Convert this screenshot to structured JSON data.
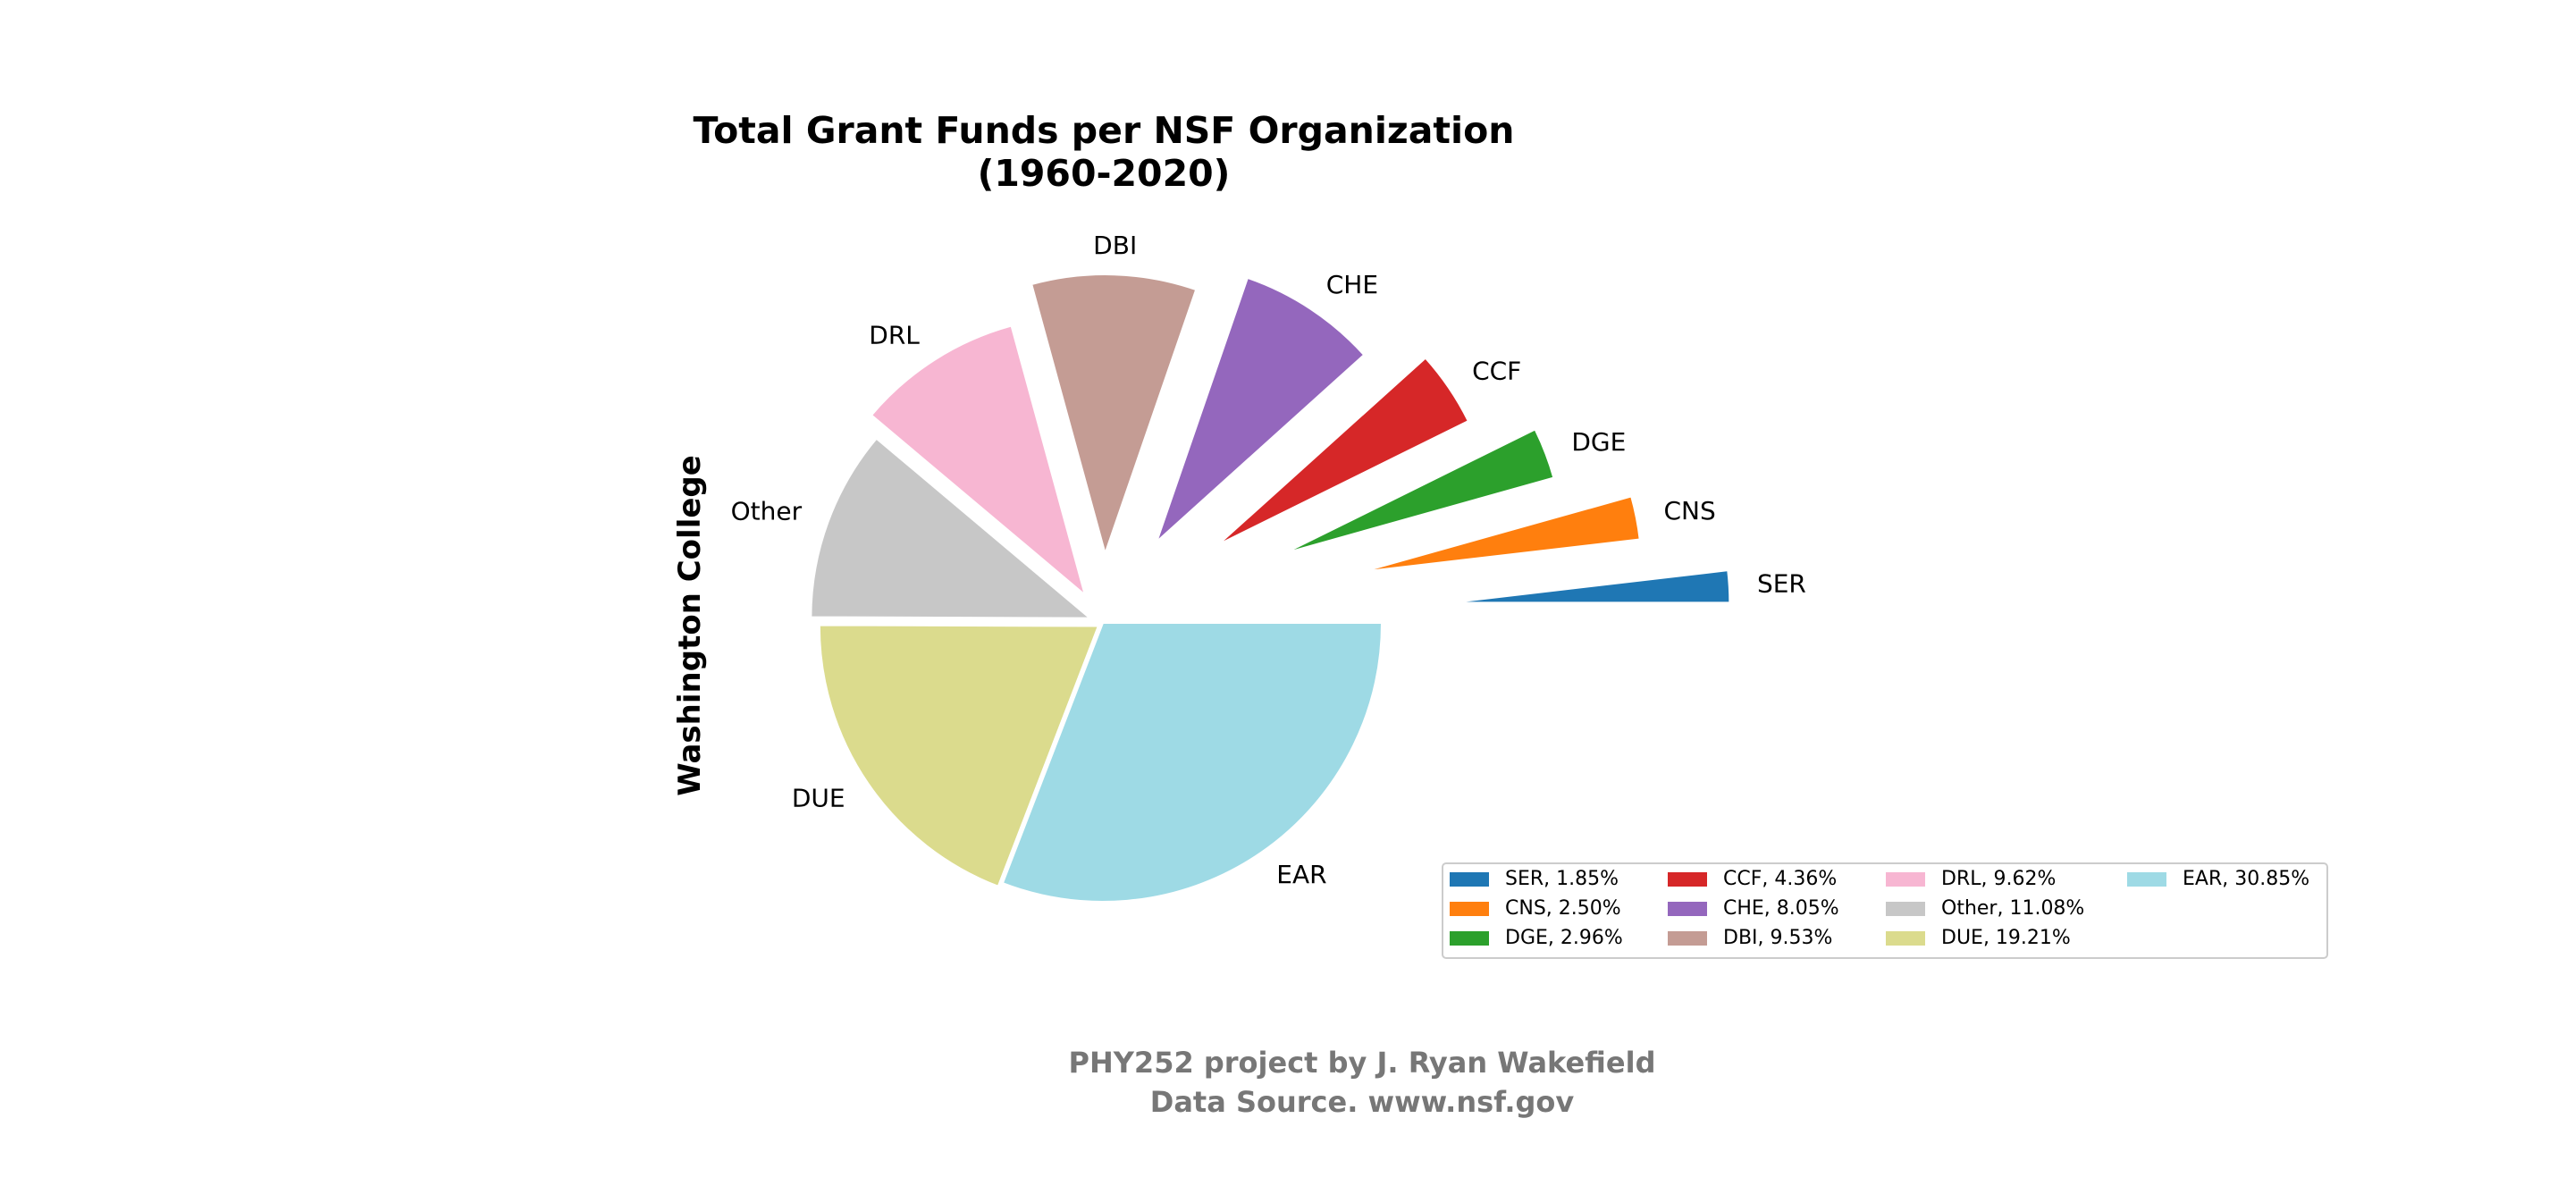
{
  "chart_data": {
    "type": "pie",
    "title": "Total Grant Funds per NSF Organization",
    "subtitle": "(1960-2020)",
    "ylabel": "Washington College",
    "slices": [
      {
        "label": "SER",
        "percent": 1.85,
        "legend": "SER, 1.85%",
        "color": "#1f77b4",
        "explode": 1.25
      },
      {
        "label": "CNS",
        "percent": 2.5,
        "legend": "CNS, 2.50%",
        "color": "#ff7f0e",
        "explode": 0.95
      },
      {
        "label": "DGE",
        "percent": 2.96,
        "legend": "DGE, 2.96%",
        "color": "#2ca02c",
        "explode": 0.7
      },
      {
        "label": "CCF",
        "percent": 4.36,
        "legend": "CCF, 4.36%",
        "color": "#d62728",
        "explode": 0.5
      },
      {
        "label": "CHE",
        "percent": 8.05,
        "legend": "CHE, 8.05%",
        "color": "#9467bd",
        "explode": 0.35
      },
      {
        "label": "DBI",
        "percent": 9.53,
        "legend": "DBI, 9.53%",
        "color": "#c49c94",
        "explode": 0.25
      },
      {
        "label": "DRL",
        "percent": 9.62,
        "legend": "DRL, 9.62%",
        "color": "#f7b6d2",
        "explode": 0.12
      },
      {
        "label": "Other",
        "percent": 11.08,
        "legend": "Other, 11.08%",
        "color": "#c7c7c7",
        "explode": 0.05
      },
      {
        "label": "DUE",
        "percent": 19.21,
        "legend": "DUE, 19.21%",
        "color": "#dbdb8d",
        "explode": 0.02
      },
      {
        "label": "EAR",
        "percent": 30.85,
        "legend": "EAR, 30.85%",
        "color": "#9edae5",
        "explode": 0.0
      }
    ],
    "legend_placement": "lower-right",
    "legend_columns": 4
  },
  "footer": {
    "line1": "PHY252 project by J. Ryan Wakefield",
    "line2": "Data Source. www.nsf.gov"
  }
}
